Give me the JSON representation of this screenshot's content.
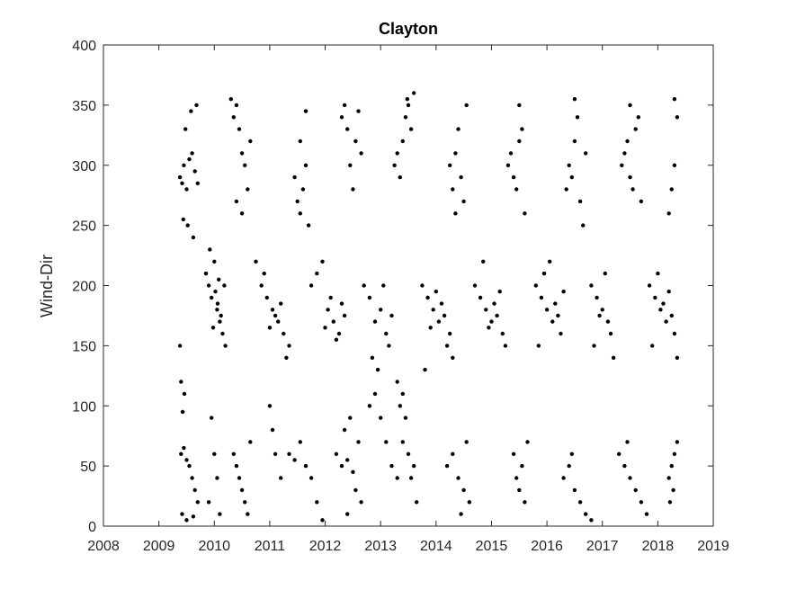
{
  "chart_data": {
    "type": "scatter",
    "title": "Clayton",
    "xlabel": "",
    "ylabel": "Wind-Dir",
    "xlim": [
      2008,
      2019
    ],
    "ylim": [
      0,
      400
    ],
    "x_ticks": [
      2008,
      2009,
      2010,
      2011,
      2012,
      2013,
      2014,
      2015,
      2016,
      2017,
      2018,
      2019
    ],
    "y_ticks": [
      0,
      50,
      100,
      150,
      200,
      250,
      300,
      350,
      400
    ],
    "grid": false,
    "legend": "none",
    "colors": {
      "marker": "#000000",
      "axis": "#262626",
      "background": "#ffffff"
    },
    "series": [
      {
        "points": [
          [
            2009.38,
            290
          ],
          [
            2009.42,
            285
          ],
          [
            2009.45,
            300
          ],
          [
            2009.5,
            280
          ],
          [
            2009.55,
            305
          ],
          [
            2009.6,
            310
          ],
          [
            2009.65,
            295
          ],
          [
            2009.7,
            285
          ],
          [
            2009.48,
            330
          ],
          [
            2009.58,
            345
          ],
          [
            2009.68,
            350
          ],
          [
            2009.52,
            250
          ],
          [
            2009.62,
            240
          ],
          [
            2009.44,
            255
          ],
          [
            2009.4,
            60
          ],
          [
            2009.45,
            65
          ],
          [
            2009.5,
            55
          ],
          [
            2009.55,
            50
          ],
          [
            2009.6,
            40
          ],
          [
            2009.65,
            30
          ],
          [
            2009.7,
            20
          ],
          [
            2009.42,
            10
          ],
          [
            2009.5,
            5
          ],
          [
            2009.62,
            8
          ],
          [
            2009.38,
            150
          ],
          [
            2009.4,
            120
          ],
          [
            2009.43,
            95
          ],
          [
            2009.46,
            110
          ],
          [
            2009.85,
            210
          ],
          [
            2009.9,
            200
          ],
          [
            2009.95,
            190
          ],
          [
            2010.0,
            220
          ],
          [
            2010.05,
            180
          ],
          [
            2010.1,
            170
          ],
          [
            2010.15,
            160
          ],
          [
            2010.2,
            150
          ],
          [
            2009.92,
            230
          ],
          [
            2010.02,
            195
          ],
          [
            2010.08,
            205
          ],
          [
            2010.12,
            175
          ],
          [
            2009.98,
            165
          ],
          [
            2010.06,
            185
          ],
          [
            2010.18,
            200
          ],
          [
            2009.95,
            90
          ],
          [
            2010.0,
            60
          ],
          [
            2010.05,
            40
          ],
          [
            2009.9,
            20
          ],
          [
            2010.1,
            10
          ],
          [
            2010.35,
            340
          ],
          [
            2010.4,
            350
          ],
          [
            2010.45,
            330
          ],
          [
            2010.5,
            310
          ],
          [
            2010.55,
            300
          ],
          [
            2010.6,
            280
          ],
          [
            2010.4,
            270
          ],
          [
            2010.5,
            260
          ],
          [
            2010.65,
            320
          ],
          [
            2010.3,
            355
          ],
          [
            2010.35,
            60
          ],
          [
            2010.4,
            50
          ],
          [
            2010.45,
            40
          ],
          [
            2010.5,
            30
          ],
          [
            2010.55,
            20
          ],
          [
            2010.6,
            10
          ],
          [
            2010.65,
            70
          ],
          [
            2010.75,
            220
          ],
          [
            2010.85,
            200
          ],
          [
            2010.95,
            190
          ],
          [
            2011.05,
            180
          ],
          [
            2011.15,
            170
          ],
          [
            2011.25,
            160
          ],
          [
            2011.35,
            150
          ],
          [
            2011.1,
            175
          ],
          [
            2011.2,
            185
          ],
          [
            2011.0,
            165
          ],
          [
            2010.9,
            210
          ],
          [
            2011.3,
            140
          ],
          [
            2011.0,
            100
          ],
          [
            2011.05,
            80
          ],
          [
            2011.1,
            60
          ],
          [
            2011.2,
            40
          ],
          [
            2011.35,
            60
          ],
          [
            2011.45,
            55
          ],
          [
            2011.55,
            70
          ],
          [
            2011.65,
            50
          ],
          [
            2011.75,
            40
          ],
          [
            2011.85,
            20
          ],
          [
            2011.95,
            5
          ],
          [
            2011.45,
            290
          ],
          [
            2011.5,
            270
          ],
          [
            2011.55,
            260
          ],
          [
            2011.6,
            280
          ],
          [
            2011.65,
            300
          ],
          [
            2011.7,
            250
          ],
          [
            2011.55,
            320
          ],
          [
            2011.65,
            345
          ],
          [
            2011.75,
            200
          ],
          [
            2011.85,
            210
          ],
          [
            2011.95,
            220
          ],
          [
            2012.05,
            180
          ],
          [
            2012.15,
            170
          ],
          [
            2012.25,
            160
          ],
          [
            2012.35,
            175
          ],
          [
            2012.0,
            165
          ],
          [
            2012.1,
            190
          ],
          [
            2012.2,
            155
          ],
          [
            2012.3,
            185
          ],
          [
            2012.3,
            340
          ],
          [
            2012.35,
            350
          ],
          [
            2012.4,
            330
          ],
          [
            2012.45,
            300
          ],
          [
            2012.5,
            280
          ],
          [
            2012.55,
            320
          ],
          [
            2012.6,
            345
          ],
          [
            2012.65,
            310
          ],
          [
            2012.2,
            60
          ],
          [
            2012.3,
            50
          ],
          [
            2012.4,
            55
          ],
          [
            2012.5,
            45
          ],
          [
            2012.6,
            70
          ],
          [
            2012.35,
            80
          ],
          [
            2012.45,
            90
          ],
          [
            2012.55,
            30
          ],
          [
            2012.65,
            20
          ],
          [
            2012.4,
            10
          ],
          [
            2012.7,
            200
          ],
          [
            2012.8,
            190
          ],
          [
            2012.9,
            170
          ],
          [
            2013.0,
            180
          ],
          [
            2013.1,
            160
          ],
          [
            2013.15,
            150
          ],
          [
            2012.85,
            140
          ],
          [
            2012.95,
            130
          ],
          [
            2013.05,
            200
          ],
          [
            2013.2,
            175
          ],
          [
            2012.8,
            100
          ],
          [
            2012.9,
            110
          ],
          [
            2013.0,
            90
          ],
          [
            2013.1,
            70
          ],
          [
            2013.2,
            50
          ],
          [
            2013.3,
            40
          ],
          [
            2013.25,
            300
          ],
          [
            2013.3,
            310
          ],
          [
            2013.35,
            290
          ],
          [
            2013.4,
            320
          ],
          [
            2013.45,
            340
          ],
          [
            2013.5,
            350
          ],
          [
            2013.55,
            330
          ],
          [
            2013.6,
            360
          ],
          [
            2013.48,
            355
          ],
          [
            2013.3,
            120
          ],
          [
            2013.35,
            100
          ],
          [
            2013.4,
            110
          ],
          [
            2013.45,
            90
          ],
          [
            2013.5,
            60
          ],
          [
            2013.55,
            40
          ],
          [
            2013.6,
            50
          ],
          [
            2013.65,
            20
          ],
          [
            2013.4,
            70
          ],
          [
            2013.75,
            200
          ],
          [
            2013.85,
            190
          ],
          [
            2013.95,
            180
          ],
          [
            2014.05,
            170
          ],
          [
            2014.15,
            175
          ],
          [
            2014.25,
            160
          ],
          [
            2014.1,
            185
          ],
          [
            2013.9,
            165
          ],
          [
            2014.0,
            195
          ],
          [
            2014.2,
            150
          ],
          [
            2013.8,
            130
          ],
          [
            2014.3,
            140
          ],
          [
            2014.25,
            300
          ],
          [
            2014.3,
            280
          ],
          [
            2014.35,
            310
          ],
          [
            2014.4,
            330
          ],
          [
            2014.45,
            290
          ],
          [
            2014.5,
            270
          ],
          [
            2014.55,
            350
          ],
          [
            2014.35,
            260
          ],
          [
            2014.2,
            50
          ],
          [
            2014.3,
            60
          ],
          [
            2014.4,
            40
          ],
          [
            2014.5,
            30
          ],
          [
            2014.6,
            20
          ],
          [
            2014.45,
            10
          ],
          [
            2014.55,
            70
          ],
          [
            2014.7,
            200
          ],
          [
            2014.8,
            190
          ],
          [
            2014.9,
            180
          ],
          [
            2015.0,
            170
          ],
          [
            2015.1,
            175
          ],
          [
            2015.2,
            160
          ],
          [
            2015.05,
            185
          ],
          [
            2014.95,
            165
          ],
          [
            2015.15,
            195
          ],
          [
            2015.25,
            150
          ],
          [
            2014.85,
            220
          ],
          [
            2015.3,
            300
          ],
          [
            2015.35,
            310
          ],
          [
            2015.4,
            290
          ],
          [
            2015.45,
            280
          ],
          [
            2015.5,
            320
          ],
          [
            2015.55,
            330
          ],
          [
            2015.6,
            260
          ],
          [
            2015.5,
            350
          ],
          [
            2015.4,
            60
          ],
          [
            2015.45,
            40
          ],
          [
            2015.5,
            30
          ],
          [
            2015.55,
            50
          ],
          [
            2015.6,
            20
          ],
          [
            2015.65,
            70
          ],
          [
            2015.8,
            200
          ],
          [
            2015.9,
            190
          ],
          [
            2016.0,
            180
          ],
          [
            2016.1,
            170
          ],
          [
            2016.2,
            175
          ],
          [
            2016.25,
            160
          ],
          [
            2015.95,
            210
          ],
          [
            2016.05,
            220
          ],
          [
            2016.15,
            185
          ],
          [
            2015.85,
            150
          ],
          [
            2016.3,
            195
          ],
          [
            2016.35,
            280
          ],
          [
            2016.4,
            300
          ],
          [
            2016.45,
            290
          ],
          [
            2016.5,
            320
          ],
          [
            2016.55,
            340
          ],
          [
            2016.6,
            270
          ],
          [
            2016.65,
            250
          ],
          [
            2016.7,
            310
          ],
          [
            2016.5,
            355
          ],
          [
            2016.3,
            40
          ],
          [
            2016.4,
            50
          ],
          [
            2016.5,
            30
          ],
          [
            2016.6,
            20
          ],
          [
            2016.7,
            10
          ],
          [
            2016.8,
            5
          ],
          [
            2016.45,
            60
          ],
          [
            2016.8,
            200
          ],
          [
            2016.9,
            190
          ],
          [
            2017.0,
            180
          ],
          [
            2017.1,
            170
          ],
          [
            2017.05,
            210
          ],
          [
            2016.95,
            175
          ],
          [
            2017.15,
            160
          ],
          [
            2016.85,
            150
          ],
          [
            2017.2,
            140
          ],
          [
            2017.35,
            300
          ],
          [
            2017.4,
            310
          ],
          [
            2017.45,
            320
          ],
          [
            2017.5,
            290
          ],
          [
            2017.55,
            280
          ],
          [
            2017.6,
            330
          ],
          [
            2017.65,
            340
          ],
          [
            2017.5,
            350
          ],
          [
            2017.7,
            270
          ],
          [
            2017.3,
            60
          ],
          [
            2017.4,
            50
          ],
          [
            2017.5,
            40
          ],
          [
            2017.6,
            30
          ],
          [
            2017.7,
            20
          ],
          [
            2017.8,
            10
          ],
          [
            2017.45,
            70
          ],
          [
            2017.85,
            200
          ],
          [
            2017.95,
            190
          ],
          [
            2018.05,
            180
          ],
          [
            2018.15,
            170
          ],
          [
            2018.25,
            175
          ],
          [
            2018.3,
            160
          ],
          [
            2018.0,
            210
          ],
          [
            2018.1,
            185
          ],
          [
            2018.2,
            195
          ],
          [
            2017.9,
            150
          ],
          [
            2018.35,
            140
          ],
          [
            2018.2,
            260
          ],
          [
            2018.25,
            280
          ],
          [
            2018.3,
            300
          ],
          [
            2018.35,
            340
          ],
          [
            2018.3,
            355
          ],
          [
            2018.2,
            40
          ],
          [
            2018.25,
            50
          ],
          [
            2018.3,
            60
          ],
          [
            2018.35,
            70
          ],
          [
            2018.28,
            30
          ],
          [
            2018.22,
            20
          ]
        ]
      }
    ]
  }
}
